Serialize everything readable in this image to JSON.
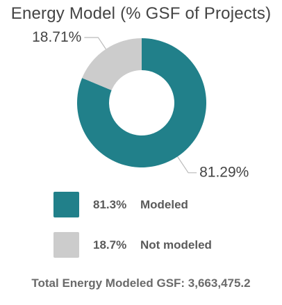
{
  "chart_data": {
    "type": "pie",
    "title": "Energy Model (% GSF of Projects)",
    "categories": [
      "Modeled",
      "Not modeled"
    ],
    "values": [
      81.29,
      18.71
    ],
    "data_labels": [
      "81.29%",
      "18.71%"
    ],
    "legend": [
      {
        "pct": "81.3%",
        "label": "Modeled",
        "color": "#21808a"
      },
      {
        "pct": "18.7%",
        "label": "Not modeled",
        "color": "#cccccc"
      }
    ],
    "legend_placement": "bottom"
  },
  "footer": {
    "total_text": "Total Energy Modeled GSF: 3,663,475.2"
  }
}
